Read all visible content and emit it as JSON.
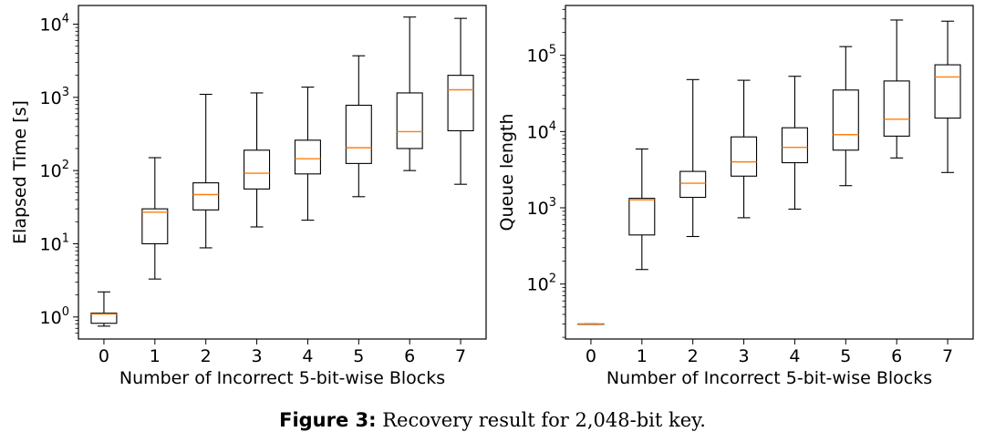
{
  "chart_data": [
    {
      "type": "box",
      "xlabel": "Number of Incorrect 5-bit-wise Blocks",
      "ylabel": "Elapsed Time [s]",
      "yscale": "log",
      "ylim": [
        0.5,
        18000
      ],
      "yticks": [
        {
          "value": 1,
          "base": "10",
          "exp": "0"
        },
        {
          "value": 10,
          "base": "10",
          "exp": "1"
        },
        {
          "value": 100,
          "base": "10",
          "exp": "2"
        },
        {
          "value": 1000,
          "base": "10",
          "exp": "3"
        },
        {
          "value": 10000,
          "base": "10",
          "exp": "4"
        }
      ],
      "categories": [
        "0",
        "1",
        "2",
        "3",
        "4",
        "5",
        "6",
        "7"
      ],
      "boxes": [
        {
          "min": 0.75,
          "q1": 0.82,
          "median": 1.1,
          "q3": 1.13,
          "max": 2.2
        },
        {
          "min": 3.3,
          "q1": 10,
          "median": 27,
          "q3": 30,
          "max": 150
        },
        {
          "min": 8.8,
          "q1": 29,
          "median": 47,
          "q3": 68,
          "max": 1100
        },
        {
          "min": 17,
          "q1": 56,
          "median": 92,
          "q3": 190,
          "max": 1150
        },
        {
          "min": 21,
          "q1": 90,
          "median": 145,
          "q3": 260,
          "max": 1380
        },
        {
          "min": 44,
          "q1": 125,
          "median": 205,
          "q3": 780,
          "max": 3700
        },
        {
          "min": 100,
          "q1": 200,
          "median": 340,
          "q3": 1150,
          "max": 12500
        },
        {
          "min": 65,
          "q1": 350,
          "median": 1270,
          "q3": 2000,
          "max": 12000
        }
      ],
      "colors": {
        "box": "#000000",
        "median": "#ff7f0e"
      }
    },
    {
      "type": "box",
      "xlabel": "Number of Incorrect 5-bit-wise Blocks",
      "ylabel": "Queue length",
      "yscale": "log",
      "ylim": [
        19,
        450000
      ],
      "yticks": [
        {
          "value": 100,
          "base": "10",
          "exp": "2"
        },
        {
          "value": 1000,
          "base": "10",
          "exp": "3"
        },
        {
          "value": 10000,
          "base": "10",
          "exp": "4"
        },
        {
          "value": 100000,
          "base": "10",
          "exp": "5"
        }
      ],
      "categories": [
        "0",
        "1",
        "2",
        "3",
        "4",
        "5",
        "6",
        "7"
      ],
      "boxes": [
        {
          "min": 30,
          "q1": 30,
          "median": 30,
          "q3": 30,
          "max": 30
        },
        {
          "min": 155,
          "q1": 440,
          "median": 1270,
          "q3": 1330,
          "max": 5900
        },
        {
          "min": 420,
          "q1": 1370,
          "median": 2100,
          "q3": 3000,
          "max": 48000
        },
        {
          "min": 740,
          "q1": 2600,
          "median": 4000,
          "q3": 8500,
          "max": 47000
        },
        {
          "min": 960,
          "q1": 3900,
          "median": 6200,
          "q3": 11200,
          "max": 53000
        },
        {
          "min": 1950,
          "q1": 5700,
          "median": 9100,
          "q3": 35000,
          "max": 130000
        },
        {
          "min": 4500,
          "q1": 8700,
          "median": 14500,
          "q3": 46000,
          "max": 290000
        },
        {
          "min": 2900,
          "q1": 15000,
          "median": 52000,
          "q3": 75000,
          "max": 280000
        }
      ],
      "colors": {
        "box": "#000000",
        "median": "#ff7f0e"
      }
    }
  ],
  "caption": {
    "label": "Figure 3:",
    "text": "Recovery result for 2,048-bit key."
  }
}
